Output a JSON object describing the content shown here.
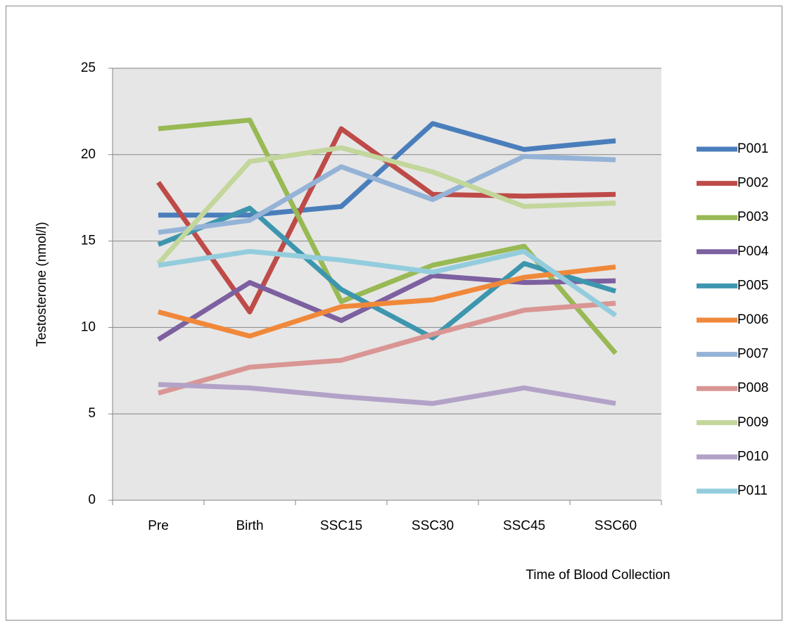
{
  "chart_data": {
    "type": "line",
    "y_label": "Testosterone (nmol/l)",
    "x_label": "Time of Blood Collection",
    "categories": [
      "Pre",
      "Birth",
      "SSC15",
      "SSC30",
      "SSC45",
      "SSC60"
    ],
    "ylim": [
      0,
      25
    ],
    "yticks": [
      0,
      5,
      10,
      15,
      20,
      25
    ],
    "grid": true,
    "legend": "right",
    "series": [
      {
        "name": "P001",
        "color": "#4a7ebb",
        "values": [
          16.5,
          16.5,
          17.0,
          21.8,
          20.3,
          20.8
        ]
      },
      {
        "name": "P002",
        "color": "#be4b48",
        "values": [
          18.4,
          10.9,
          21.5,
          17.7,
          17.6,
          17.7
        ]
      },
      {
        "name": "P003",
        "color": "#98b954",
        "values": [
          21.5,
          22.0,
          11.5,
          13.6,
          14.7,
          8.5
        ]
      },
      {
        "name": "P004",
        "color": "#7d60a0",
        "values": [
          9.3,
          12.6,
          10.4,
          13.0,
          12.6,
          12.7
        ]
      },
      {
        "name": "P005",
        "color": "#3d96ae",
        "values": [
          14.8,
          16.9,
          12.2,
          9.4,
          13.7,
          12.1
        ]
      },
      {
        "name": "P006",
        "color": "#f0883a",
        "values": [
          10.9,
          9.5,
          11.2,
          11.6,
          12.9,
          13.5
        ]
      },
      {
        "name": "P007",
        "color": "#95b3d7",
        "values": [
          15.5,
          16.2,
          19.3,
          17.4,
          19.9,
          19.7
        ]
      },
      {
        "name": "P008",
        "color": "#d99694",
        "values": [
          6.2,
          7.7,
          8.1,
          9.6,
          11.0,
          11.4
        ]
      },
      {
        "name": "P009",
        "color": "#c3d69b",
        "values": [
          13.7,
          19.6,
          20.4,
          19.0,
          17.0,
          17.2
        ]
      },
      {
        "name": "P010",
        "color": "#b3a2c7",
        "values": [
          6.7,
          6.5,
          6.0,
          5.6,
          6.5,
          5.6
        ]
      },
      {
        "name": "P011",
        "color": "#93cddd",
        "values": [
          13.6,
          14.4,
          13.9,
          13.2,
          14.4,
          10.7
        ]
      }
    ]
  }
}
